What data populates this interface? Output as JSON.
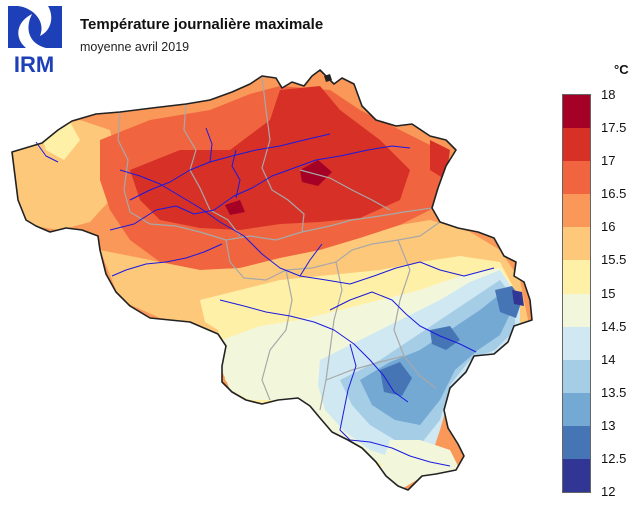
{
  "header": {
    "logo_text": "IRM",
    "title": "Température journalière maximale",
    "subtitle": "moyenne avril 2019"
  },
  "legend": {
    "unit": "°C",
    "ticks": [
      "18",
      "17.5",
      "17",
      "16.5",
      "16",
      "15.5",
      "15",
      "14.5",
      "14",
      "13.5",
      "13",
      "12.5",
      "12"
    ],
    "classes": [
      {
        "from": 17.5,
        "to": 18,
        "color": "#a50026"
      },
      {
        "from": 17,
        "to": 17.5,
        "color": "#d73027"
      },
      {
        "from": 16.5,
        "to": 17,
        "color": "#f0643f"
      },
      {
        "from": 16,
        "to": 16.5,
        "color": "#f99858"
      },
      {
        "from": 15.5,
        "to": 16,
        "color": "#fec87a"
      },
      {
        "from": 15,
        "to": 15.5,
        "color": "#fff0a8"
      },
      {
        "from": 14.5,
        "to": 15,
        "color": "#f2f7dc"
      },
      {
        "from": 14,
        "to": 14.5,
        "color": "#cfe8f2"
      },
      {
        "from": 13.5,
        "to": 14,
        "color": "#a5cde6"
      },
      {
        "from": 13,
        "to": 13.5,
        "color": "#74a9d4"
      },
      {
        "from": 12.5,
        "to": 13,
        "color": "#4575b4"
      },
      {
        "from": 12,
        "to": 12.5,
        "color": "#313695"
      }
    ]
  },
  "colors": {
    "border": "#222222",
    "province_border": "#a8a8a8",
    "river": "#1a1adf",
    "logo": "#1d3fb8"
  }
}
